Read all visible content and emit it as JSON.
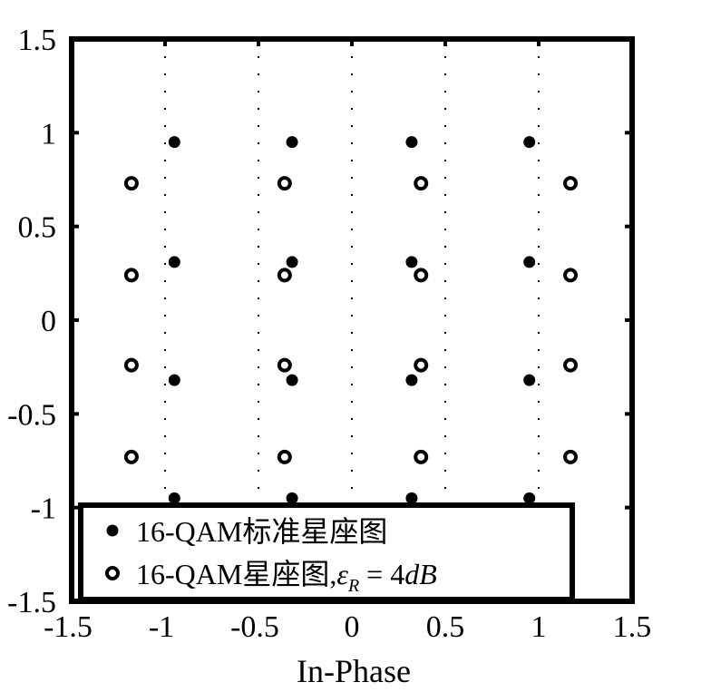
{
  "chart_data": {
    "type": "scatter",
    "title": "",
    "xlabel": "In-Phase",
    "ylabel": "",
    "xlim": [
      -1.5,
      1.5
    ],
    "ylim": [
      -1.5,
      1.5
    ],
    "x_ticks": [
      -1.5,
      -1,
      -0.5,
      0,
      0.5,
      1,
      1.5
    ],
    "x_tick_labels": [
      "-1.5",
      "-1",
      "-0.5",
      "0",
      "0.5",
      "1",
      "1.5"
    ],
    "y_ticks": [
      -1.5,
      -1,
      -0.5,
      0,
      0.5,
      1,
      1.5
    ],
    "y_tick_labels": [
      "-1.5",
      "-1",
      "-0.5",
      "0",
      "0.5",
      "1",
      "1.5"
    ],
    "grid": "vertical-dotted",
    "legend_position": "bottom-left",
    "series": [
      {
        "name": "16-QAM标准星座图",
        "marker": "filled-circle",
        "x": [
          -0.95,
          -0.32,
          0.32,
          0.95,
          -0.95,
          -0.32,
          0.32,
          0.95,
          -0.95,
          -0.32,
          0.32,
          0.95,
          -0.95,
          -0.32,
          0.32,
          0.95
        ],
        "y": [
          0.95,
          0.95,
          0.95,
          0.95,
          0.31,
          0.31,
          0.31,
          0.31,
          -0.32,
          -0.32,
          -0.32,
          -0.32,
          -0.95,
          -0.95,
          -0.95,
          -0.95
        ]
      },
      {
        "name": "16-QAM星座图,ε_R = 4dB",
        "marker": "hollow-circle",
        "x": [
          -1.18,
          -0.36,
          0.37,
          1.17,
          -1.18,
          -0.36,
          0.37,
          1.17,
          -1.18,
          -0.36,
          0.37,
          1.17,
          -1.18,
          -0.36,
          0.37,
          1.17
        ],
        "y": [
          0.73,
          0.73,
          0.73,
          0.73,
          0.24,
          0.24,
          0.24,
          0.24,
          -0.24,
          -0.24,
          -0.24,
          -0.24,
          -0.73,
          -0.73,
          -0.73,
          -0.73
        ]
      }
    ],
    "legend": {
      "entry1": "16-QAM标准星座图",
      "entry2_prefix": "16-QAM星座图,",
      "entry2_symbol": "ε",
      "entry2_subscript": "R",
      "entry2_eq": " = 4",
      "entry2_unit": "dB"
    },
    "colors": {
      "marker": "#000000",
      "frame": "#000000",
      "grid": "#000000"
    }
  }
}
